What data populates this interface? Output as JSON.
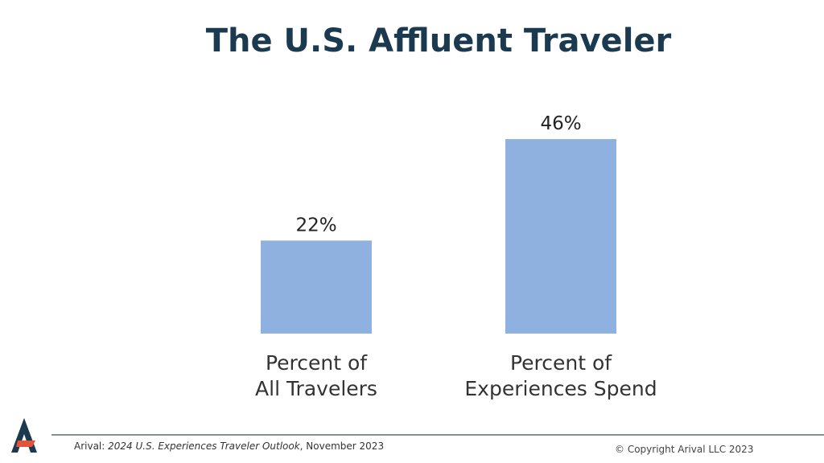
{
  "chart_data": {
    "type": "bar",
    "title": "The U.S. Affluent Traveler",
    "categories": [
      "Percent of All Travelers",
      "Percent of Experiences Spend"
    ],
    "values": [
      22,
      46
    ],
    "value_labels": [
      "22%",
      "46%"
    ],
    "color": "#8eb1df"
  },
  "footer": {
    "source_prefix": "Arival: ",
    "source_title": "2024 U.S. Experiences Traveler Outlook",
    "source_suffix": ", November 2023",
    "copyright": "© Copyright Arival LLC 2023"
  }
}
